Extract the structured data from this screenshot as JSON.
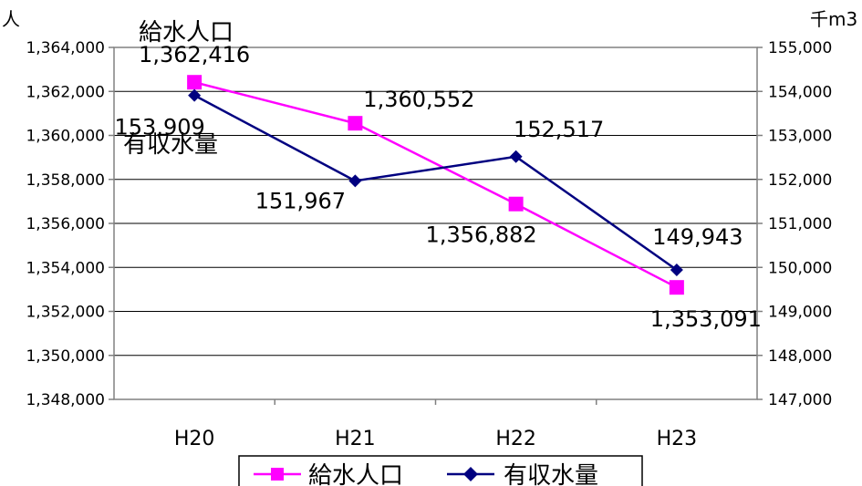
{
  "chart_data": {
    "type": "line",
    "categories": [
      "H20",
      "H21",
      "H22",
      "H23"
    ],
    "left_axis": {
      "unit": "人",
      "ylim": [
        1348000,
        1364000
      ],
      "tick_step": 2000
    },
    "right_axis": {
      "unit": "千m3",
      "ylim": [
        147000,
        155000
      ],
      "tick_step": 1000
    },
    "series": [
      {
        "name": "給水人口",
        "axis": "left",
        "color": "#ff00ff",
        "marker": "square",
        "values": [
          1362416,
          1360552,
          1356882,
          1353091
        ],
        "labels": [
          "1,362,416",
          "1,360,552",
          "1,356,882",
          "1,353,091"
        ]
      },
      {
        "name": "有収水量",
        "axis": "right",
        "color": "#000080",
        "marker": "diamond",
        "values": [
          153909,
          151967,
          152517,
          149943
        ],
        "labels": [
          "153,909",
          "151,967",
          "152,517",
          "149,943"
        ]
      }
    ],
    "annotations": [
      "給水人口",
      "有収水量"
    ],
    "grid": "horizontal",
    "legend": "bottom-center"
  }
}
